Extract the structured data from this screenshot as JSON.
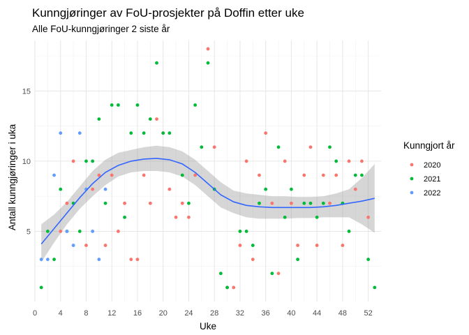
{
  "chart_data": {
    "type": "scatter",
    "title": "Kunngjøringer av FoU-prosjekter på Doffin etter uke",
    "subtitle": "Alle FoU-kunngjøringer 2 siste år",
    "xlabel": "Uke",
    "ylabel": "Antall kunngjøringer i uka",
    "xlim": [
      0,
      54
    ],
    "ylim": [
      0,
      18.6
    ],
    "x_ticks": [
      0,
      4,
      8,
      12,
      16,
      20,
      24,
      28,
      32,
      36,
      40,
      44,
      48,
      52
    ],
    "y_ticks": [
      5,
      10,
      15
    ],
    "grid": true,
    "legend": {
      "title": "Kunngjort år",
      "position": "right"
    },
    "series": [
      {
        "name": "2020",
        "color": "#F8766D",
        "points": [
          [
            4,
            5
          ],
          [
            5,
            7
          ],
          [
            6,
            10
          ],
          [
            8,
            4
          ],
          [
            9,
            8
          ],
          [
            10,
            9
          ],
          [
            11,
            4
          ],
          [
            12,
            9
          ],
          [
            13,
            5
          ],
          [
            14,
            7
          ],
          [
            15,
            3
          ],
          [
            16,
            3
          ],
          [
            17,
            9
          ],
          [
            18,
            7
          ],
          [
            19,
            13
          ],
          [
            20,
            12
          ],
          [
            21,
            8
          ],
          [
            22,
            6
          ],
          [
            23,
            7
          ],
          [
            24,
            6
          ],
          [
            25,
            9
          ],
          [
            27,
            18
          ],
          [
            28,
            11
          ],
          [
            30,
            1
          ],
          [
            31,
            1
          ],
          [
            32,
            4
          ],
          [
            33,
            10
          ],
          [
            34,
            3
          ],
          [
            35,
            9
          ],
          [
            36,
            12
          ],
          [
            37,
            7
          ],
          [
            38,
            2
          ],
          [
            39,
            10
          ],
          [
            40,
            7
          ],
          [
            41,
            4
          ],
          [
            42,
            9
          ],
          [
            43,
            11
          ],
          [
            44,
            4
          ],
          [
            45,
            9
          ],
          [
            46,
            7
          ],
          [
            47,
            9
          ],
          [
            48,
            4
          ],
          [
            49,
            10
          ],
          [
            50,
            8
          ],
          [
            51,
            10
          ],
          [
            52,
            6
          ]
        ]
      },
      {
        "name": "2021",
        "color": "#00BA38",
        "points": [
          [
            1,
            1
          ],
          [
            2,
            5
          ],
          [
            3,
            3
          ],
          [
            4,
            8
          ],
          [
            5,
            5
          ],
          [
            6,
            7
          ],
          [
            7,
            5
          ],
          [
            8,
            10
          ],
          [
            9,
            10
          ],
          [
            10,
            13
          ],
          [
            11,
            7
          ],
          [
            12,
            14
          ],
          [
            13,
            14
          ],
          [
            14,
            6
          ],
          [
            15,
            12
          ],
          [
            16,
            14
          ],
          [
            17,
            12
          ],
          [
            18,
            13
          ],
          [
            19,
            17
          ],
          [
            20,
            12
          ],
          [
            21,
            12
          ],
          [
            23,
            9
          ],
          [
            24,
            7
          ],
          [
            25,
            14
          ],
          [
            26,
            11
          ],
          [
            27,
            17
          ],
          [
            28,
            8
          ],
          [
            29,
            2
          ],
          [
            30,
            1
          ],
          [
            32,
            5
          ],
          [
            33,
            5
          ],
          [
            34,
            4
          ],
          [
            35,
            7
          ],
          [
            36,
            8
          ],
          [
            37,
            2
          ],
          [
            38,
            11
          ],
          [
            39,
            6
          ],
          [
            40,
            8
          ],
          [
            41,
            3
          ],
          [
            42,
            7
          ],
          [
            43,
            7
          ],
          [
            44,
            6
          ],
          [
            45,
            7
          ],
          [
            46,
            11
          ],
          [
            47,
            10
          ],
          [
            48,
            7
          ],
          [
            49,
            5
          ],
          [
            50,
            9
          ],
          [
            51,
            9
          ],
          [
            52,
            3
          ],
          [
            53,
            1
          ]
        ]
      },
      {
        "name": "2022",
        "color": "#619CFF",
        "points": [
          [
            1,
            3
          ],
          [
            2,
            3
          ],
          [
            3,
            9
          ],
          [
            4,
            12
          ],
          [
            5,
            5
          ],
          [
            6,
            4
          ],
          [
            7,
            12
          ],
          [
            8,
            8
          ],
          [
            9,
            5
          ],
          [
            10,
            3
          ],
          [
            11,
            8
          ]
        ]
      }
    ],
    "smooth": {
      "color": "#3366FF",
      "band_color": "#999999",
      "points": [
        [
          1,
          4.1
        ],
        [
          3,
          5.2
        ],
        [
          5,
          6.3
        ],
        [
          7,
          7.4
        ],
        [
          9,
          8.4
        ],
        [
          11,
          9.2
        ],
        [
          13,
          9.7
        ],
        [
          15,
          10.0
        ],
        [
          17,
          10.15
        ],
        [
          19,
          10.2
        ],
        [
          21,
          10.1
        ],
        [
          23,
          9.8
        ],
        [
          25,
          9.2
        ],
        [
          27,
          8.4
        ],
        [
          29,
          7.6
        ],
        [
          31,
          7.1
        ],
        [
          33,
          6.85
        ],
        [
          35,
          6.75
        ],
        [
          37,
          6.7
        ],
        [
          39,
          6.7
        ],
        [
          41,
          6.7
        ],
        [
          43,
          6.7
        ],
        [
          45,
          6.75
        ],
        [
          47,
          6.85
        ],
        [
          49,
          7.0
        ],
        [
          51,
          7.15
        ],
        [
          53,
          7.35
        ]
      ],
      "lower": [
        [
          1,
          2.8
        ],
        [
          3,
          4.2
        ],
        [
          5,
          5.5
        ],
        [
          7,
          6.6
        ],
        [
          9,
          7.5
        ],
        [
          11,
          8.3
        ],
        [
          13,
          8.9
        ],
        [
          15,
          9.2
        ],
        [
          17,
          9.3
        ],
        [
          19,
          9.3
        ],
        [
          21,
          9.2
        ],
        [
          23,
          8.9
        ],
        [
          25,
          8.3
        ],
        [
          27,
          7.5
        ],
        [
          29,
          6.7
        ],
        [
          31,
          6.3
        ],
        [
          33,
          6.0
        ],
        [
          35,
          5.9
        ],
        [
          37,
          5.9
        ],
        [
          39,
          5.9
        ],
        [
          41,
          5.95
        ],
        [
          43,
          5.95
        ],
        [
          45,
          6.0
        ],
        [
          47,
          6.0
        ],
        [
          49,
          6.0
        ],
        [
          51,
          5.5
        ],
        [
          53,
          4.9
        ]
      ],
      "upper": [
        [
          1,
          5.5
        ],
        [
          3,
          6.2
        ],
        [
          5,
          7.1
        ],
        [
          7,
          8.2
        ],
        [
          9,
          9.3
        ],
        [
          11,
          10.1
        ],
        [
          13,
          10.6
        ],
        [
          15,
          10.8
        ],
        [
          17,
          11.0
        ],
        [
          19,
          11.1
        ],
        [
          21,
          11.0
        ],
        [
          23,
          10.7
        ],
        [
          25,
          10.1
        ],
        [
          27,
          9.3
        ],
        [
          29,
          8.5
        ],
        [
          31,
          7.9
        ],
        [
          33,
          7.7
        ],
        [
          35,
          7.6
        ],
        [
          37,
          7.5
        ],
        [
          39,
          7.5
        ],
        [
          41,
          7.45
        ],
        [
          43,
          7.45
        ],
        [
          45,
          7.5
        ],
        [
          47,
          7.7
        ],
        [
          49,
          8.0
        ],
        [
          51,
          8.8
        ],
        [
          53,
          9.8
        ]
      ]
    }
  }
}
